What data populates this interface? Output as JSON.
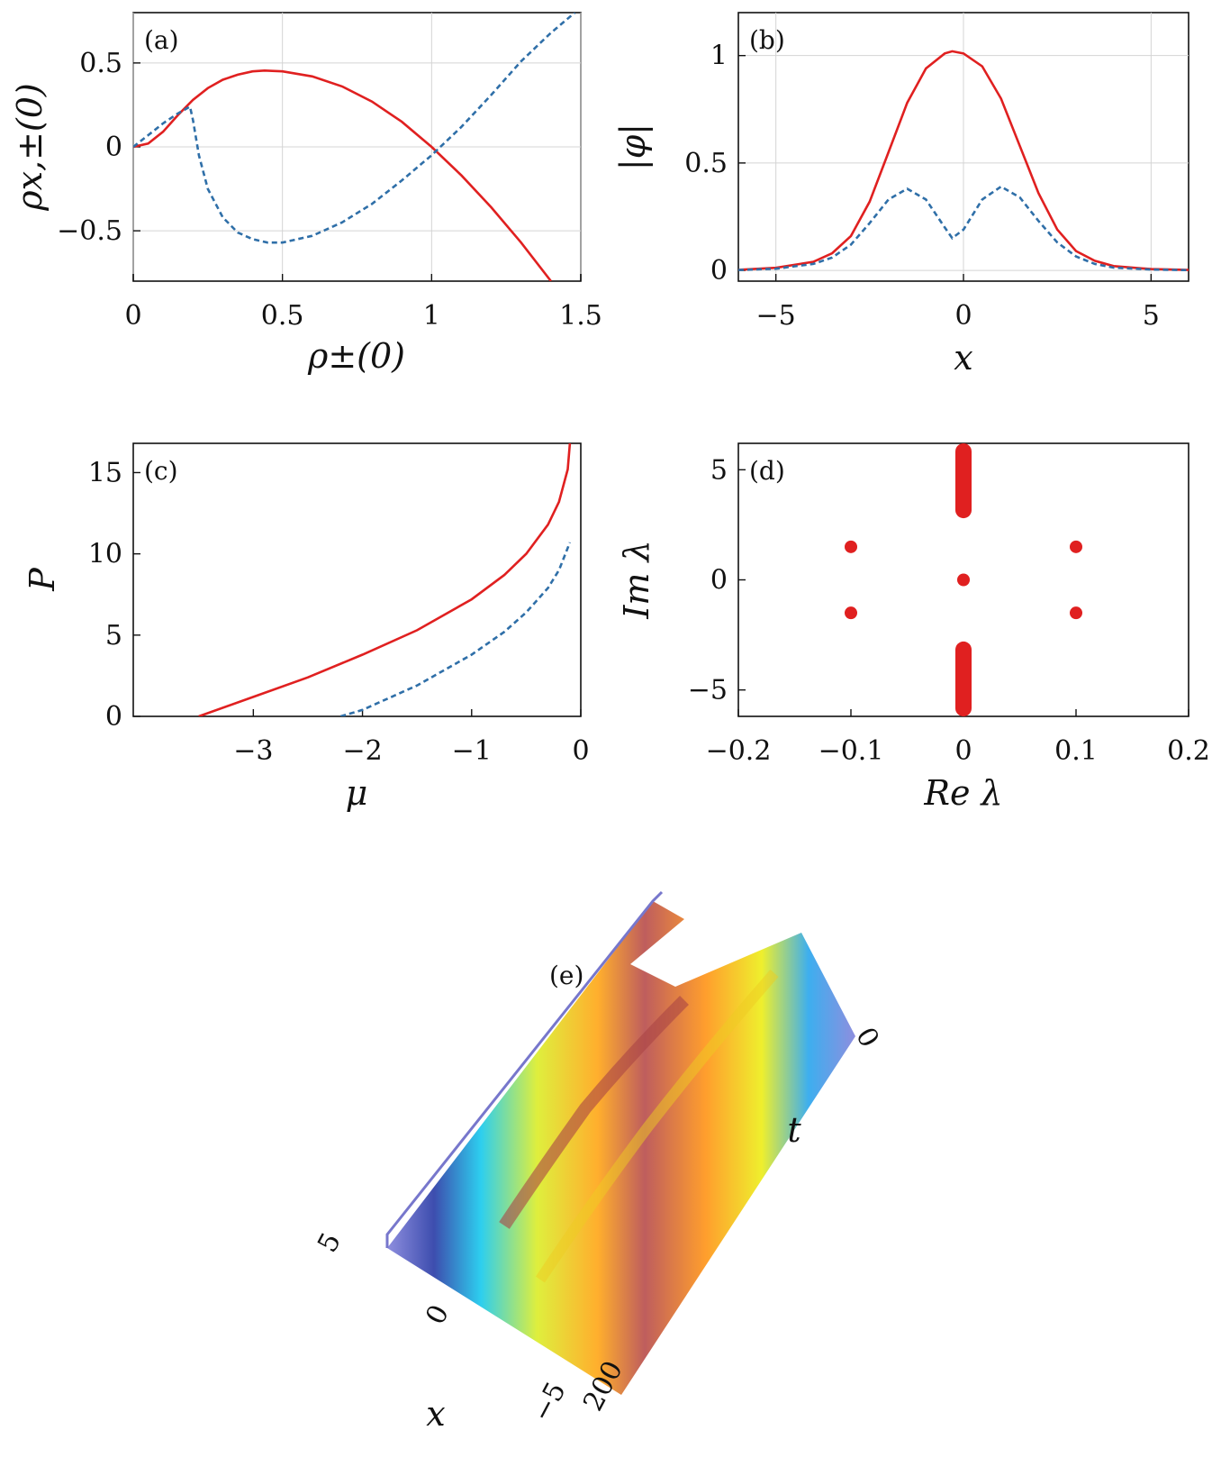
{
  "chart_data": [
    {
      "panel": "(a)",
      "type": "line",
      "xlabel": "ρ±(0)",
      "ylabel": "ρx,±(0)",
      "xlim": [
        0,
        1.5
      ],
      "ylim": [
        -0.8,
        0.8
      ],
      "xticks": [
        0,
        0.5,
        1,
        1.5
      ],
      "xtick_labels": [
        "0",
        "0.5",
        "1",
        "1.5"
      ],
      "yticks": [
        -0.5,
        0,
        0.5
      ],
      "ytick_labels": [
        "−0.5",
        "0",
        "0.5"
      ],
      "grid": true,
      "series": [
        {
          "style": "solid",
          "color": "#e02020",
          "x": [
            0,
            0.05,
            0.1,
            0.15,
            0.2,
            0.25,
            0.3,
            0.35,
            0.4,
            0.44,
            0.5,
            0.6,
            0.7,
            0.8,
            0.9,
            1.0,
            1.1,
            1.2,
            1.3,
            1.4
          ],
          "y": [
            0,
            0.02,
            0.09,
            0.19,
            0.28,
            0.35,
            0.4,
            0.43,
            0.45,
            0.455,
            0.45,
            0.42,
            0.36,
            0.27,
            0.15,
            0.0,
            -0.17,
            -0.36,
            -0.57,
            -0.8
          ]
        },
        {
          "style": "dashed",
          "color": "#2f6fa8",
          "x": [
            0,
            0.05,
            0.1,
            0.15,
            0.19,
            0.2,
            0.22,
            0.25,
            0.3,
            0.35,
            0.4,
            0.45,
            0.5,
            0.6,
            0.7,
            0.8,
            0.9,
            1.0,
            1.1,
            1.2,
            1.3,
            1.4,
            1.48
          ],
          "y": [
            0,
            0.07,
            0.14,
            0.2,
            0.24,
            0.16,
            -0.05,
            -0.25,
            -0.42,
            -0.51,
            -0.55,
            -0.57,
            -0.57,
            -0.53,
            -0.45,
            -0.34,
            -0.2,
            -0.05,
            0.12,
            0.31,
            0.51,
            0.68,
            0.8
          ]
        }
      ]
    },
    {
      "panel": "(b)",
      "type": "line",
      "xlabel": "x",
      "ylabel": "|φ|",
      "xlim": [
        -6,
        6
      ],
      "ylim": [
        -0.05,
        1.2
      ],
      "xticks": [
        -5,
        0,
        5
      ],
      "xtick_labels": [
        "−5",
        "0",
        "5"
      ],
      "yticks": [
        0,
        0.5,
        1
      ],
      "ytick_labels": [
        "0",
        "0.5",
        "1"
      ],
      "grid": true,
      "series": [
        {
          "style": "solid",
          "color": "#e02020",
          "x": [
            -6,
            -5,
            -4,
            -3.5,
            -3,
            -2.5,
            -2,
            -1.5,
            -1,
            -0.5,
            -0.3,
            0,
            0.5,
            1,
            1.5,
            2,
            2.5,
            3,
            3.5,
            4,
            5,
            6
          ],
          "y": [
            0.003,
            0.012,
            0.04,
            0.08,
            0.16,
            0.32,
            0.55,
            0.78,
            0.94,
            1.01,
            1.02,
            1.01,
            0.95,
            0.8,
            0.58,
            0.36,
            0.19,
            0.09,
            0.045,
            0.02,
            0.006,
            0.002
          ]
        },
        {
          "style": "dashed",
          "color": "#2f6fa8",
          "x": [
            -6,
            -5,
            -4,
            -3.5,
            -3,
            -2.5,
            -2,
            -1.5,
            -1,
            -0.5,
            -0.3,
            0,
            0.5,
            1,
            1.5,
            2,
            2.5,
            3,
            3.5,
            4,
            5,
            6
          ],
          "y": [
            0.002,
            0.008,
            0.03,
            0.06,
            0.12,
            0.22,
            0.33,
            0.38,
            0.33,
            0.2,
            0.15,
            0.19,
            0.33,
            0.39,
            0.34,
            0.23,
            0.13,
            0.065,
            0.03,
            0.013,
            0.004,
            0.001
          ]
        }
      ]
    },
    {
      "panel": "(c)",
      "type": "line",
      "xlabel": "μ",
      "ylabel": "P",
      "xlim": [
        -4.1,
        0
      ],
      "ylim": [
        0,
        16.8
      ],
      "xticks": [
        -3,
        -2,
        -1,
        0
      ],
      "xtick_labels": [
        "−3",
        "−2",
        "−1",
        "0"
      ],
      "yticks": [
        0,
        5,
        10,
        15
      ],
      "ytick_labels": [
        "0",
        "5",
        "10",
        "15"
      ],
      "grid": false,
      "series": [
        {
          "style": "solid",
          "color": "#e02020",
          "x": [
            -3.5,
            -3.0,
            -2.5,
            -2.0,
            -1.5,
            -1.0,
            -0.7,
            -0.5,
            -0.3,
            -0.2,
            -0.12,
            -0.1
          ],
          "y": [
            0,
            1.2,
            2.4,
            3.8,
            5.3,
            7.2,
            8.7,
            10.0,
            11.8,
            13.2,
            15.2,
            16.8
          ]
        },
        {
          "style": "dashed",
          "color": "#2f6fa8",
          "x": [
            -2.2,
            -2.0,
            -1.5,
            -1.0,
            -0.7,
            -0.5,
            -0.3,
            -0.2,
            -0.1
          ],
          "y": [
            0,
            0.4,
            1.9,
            3.8,
            5.2,
            6.4,
            7.9,
            9.0,
            10.7
          ]
        }
      ]
    },
    {
      "panel": "(d)",
      "type": "scatter",
      "xlabel": "Re λ",
      "ylabel": "Im λ",
      "xlim": [
        -0.2,
        0.2
      ],
      "ylim": [
        -6.2,
        6.2
      ],
      "xticks": [
        -0.2,
        -0.1,
        0,
        0.1,
        0.2
      ],
      "xtick_labels": [
        "−0.2",
        "−0.1",
        "0",
        "0.1",
        "0.2"
      ],
      "yticks": [
        -5,
        0,
        5
      ],
      "ytick_labels": [
        "−5",
        "0",
        "5"
      ],
      "grid": false,
      "series": [
        {
          "color": "#e02020",
          "x": [
            -0.1,
            -0.1,
            0,
            0.1,
            0.1
          ],
          "y": [
            1.5,
            -1.5,
            0,
            1.5,
            -1.5
          ]
        }
      ],
      "continuum": [
        {
          "x": 0,
          "ymin": 2.8,
          "ymax": 6.2
        },
        {
          "x": 0,
          "ymin": -6.2,
          "ymax": -2.8
        }
      ]
    },
    {
      "panel": "(e)",
      "type": "surface",
      "xlabel": "x",
      "ylabel": "t",
      "x_ticks": [
        "5",
        "0",
        "−5"
      ],
      "t_ticks": [
        "0",
        "200"
      ]
    }
  ]
}
